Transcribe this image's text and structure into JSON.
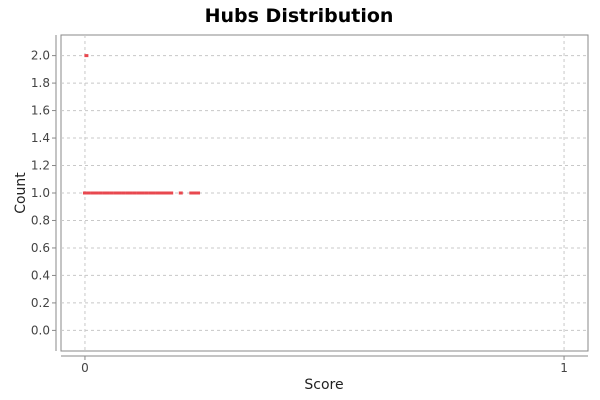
{
  "chart_data": {
    "type": "scatter",
    "title": "Hubs Distribution",
    "xlabel": "Score",
    "ylabel": "Count",
    "xlim": [
      -0.05,
      1.05
    ],
    "ylim": [
      -0.15,
      2.15
    ],
    "xticks": [
      0,
      1
    ],
    "xtick_labels": [
      "0",
      "1"
    ],
    "yticks": [
      0.0,
      0.2,
      0.4,
      0.6,
      0.8,
      1.0,
      1.2,
      1.4,
      1.6,
      1.8,
      2.0
    ],
    "ytick_labels": [
      "0.0",
      "0.2",
      "0.4",
      "0.6",
      "0.8",
      "1.0",
      "1.2",
      "1.4",
      "1.6",
      "1.8",
      "2.0"
    ],
    "grid": true,
    "series": [
      {
        "color": "#e8484f",
        "points": [
          {
            "x": 0.003,
            "y": 2.0
          },
          {
            "x": 0.0,
            "y": 1.0
          },
          {
            "x": 0.008,
            "y": 1.0
          },
          {
            "x": 0.016,
            "y": 1.0
          },
          {
            "x": 0.024,
            "y": 1.0
          },
          {
            "x": 0.032,
            "y": 1.0
          },
          {
            "x": 0.04,
            "y": 1.0
          },
          {
            "x": 0.048,
            "y": 1.0
          },
          {
            "x": 0.056,
            "y": 1.0
          },
          {
            "x": 0.064,
            "y": 1.0
          },
          {
            "x": 0.072,
            "y": 1.0
          },
          {
            "x": 0.08,
            "y": 1.0
          },
          {
            "x": 0.088,
            "y": 1.0
          },
          {
            "x": 0.096,
            "y": 1.0
          },
          {
            "x": 0.104,
            "y": 1.0
          },
          {
            "x": 0.112,
            "y": 1.0
          },
          {
            "x": 0.12,
            "y": 1.0
          },
          {
            "x": 0.128,
            "y": 1.0
          },
          {
            "x": 0.136,
            "y": 1.0
          },
          {
            "x": 0.144,
            "y": 1.0
          },
          {
            "x": 0.152,
            "y": 1.0
          },
          {
            "x": 0.158,
            "y": 1.0
          },
          {
            "x": 0.165,
            "y": 1.0
          },
          {
            "x": 0.17,
            "y": 1.0
          },
          {
            "x": 0.176,
            "y": 1.0
          },
          {
            "x": 0.18,
            "y": 1.0
          },
          {
            "x": 0.2,
            "y": 1.0
          },
          {
            "x": 0.222,
            "y": 1.0
          },
          {
            "x": 0.228,
            "y": 1.0
          },
          {
            "x": 0.236,
            "y": 1.0
          }
        ]
      }
    ]
  }
}
